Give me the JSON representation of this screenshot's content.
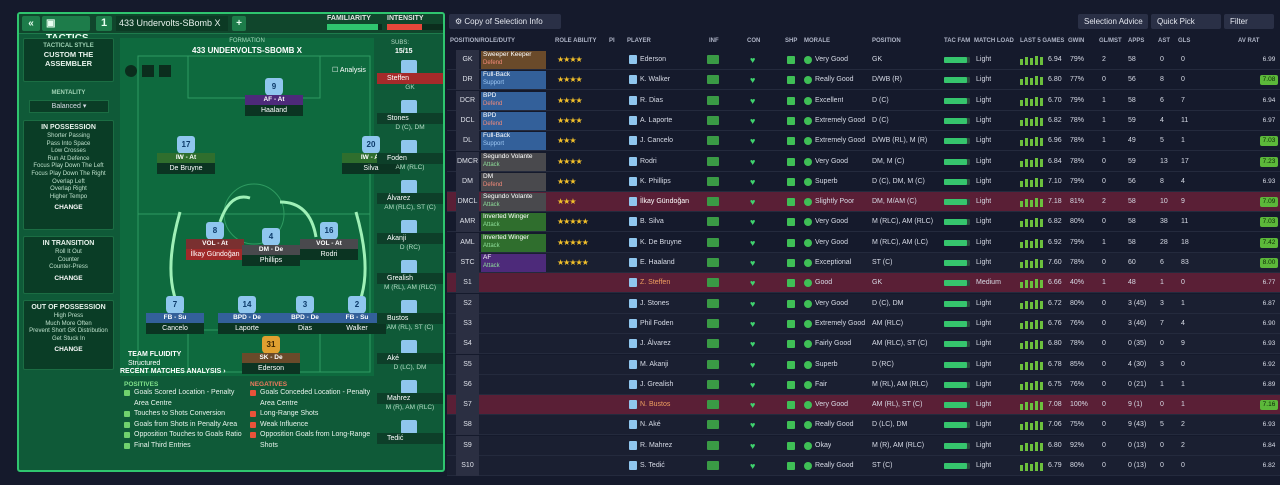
{
  "header": {
    "collapse_label": "«",
    "tactics_label": "TACTICS",
    "slot_number": "1",
    "tactic_name": "433 Undervolts-SBomb X",
    "add_label": "+",
    "familiarity_label": "FAMILIARITY",
    "familiarity_value": 0.92,
    "intensity_label": "INTENSITY",
    "intensity_value": 0.62
  },
  "sidebar": {
    "style_label": "TACTICAL STYLE",
    "style_value": "CUSTOM THE ASSEMBLER",
    "mentality_label": "MENTALITY",
    "mentality_value": "Balanced",
    "in_possession": {
      "title": "IN POSSESSION",
      "items": [
        "Shorter Passing",
        "Pass Into Space",
        "Low Crosses",
        "Run At Defence",
        "Focus Play Down The Left",
        "Focus Play Down The Right",
        "Overlap Left",
        "Overlap Right",
        "Higher Tempo"
      ],
      "change": "CHANGE"
    },
    "in_transition": {
      "title": "IN TRANSITION",
      "items": [
        "Roll It Out",
        "Counter",
        "Counter-Press"
      ],
      "change": "CHANGE"
    },
    "out_of_possession": {
      "title": "OUT OF POSSESSION",
      "items": [
        "High Press",
        "Much More Often",
        "Prevent Short GK Distribution",
        "Get Stuck In"
      ],
      "change": "CHANGE"
    }
  },
  "pitch": {
    "formation_label": "FORMATION",
    "formation_name": "433 UNDERVOLTS-SBOMB X",
    "analysis_label": "Analysis",
    "team_fluidity_label": "TEAM FLUIDITY",
    "team_fluidity_value": "Structured",
    "players": [
      {
        "num": "9",
        "role": "AF - At",
        "name": "Haaland",
        "color": "#4d2a7a"
      },
      {
        "num": "17",
        "role": "IW - At",
        "name": "De Bruyne",
        "color": "#2f6e2d"
      },
      {
        "num": "20",
        "role": "IW - At",
        "name": "Silva",
        "color": "#2f6e2d"
      },
      {
        "num": "8",
        "role": "VOL - At",
        "name": "İlkay Gündoğan",
        "color": "#7a3030"
      },
      {
        "num": "4",
        "role": "DM - De",
        "name": "Phillips",
        "color": "#49494d"
      },
      {
        "num": "16",
        "role": "VOL - At",
        "name": "Rodri",
        "color": "#49494d"
      },
      {
        "num": "7",
        "role": "FB - Su",
        "name": "Cancelo",
        "color": "#33609a"
      },
      {
        "num": "14",
        "role": "BPD - De",
        "name": "Laporte",
        "color": "#33609a"
      },
      {
        "num": "3",
        "role": "BPD - De",
        "name": "Dias",
        "color": "#33609a"
      },
      {
        "num": "2",
        "role": "FB - Su",
        "name": "Walker",
        "color": "#33609a"
      },
      {
        "num": "31",
        "role": "SK - De",
        "name": "Ederson",
        "color": "#6a4a2a"
      }
    ]
  },
  "subs": {
    "label": "SUBS:",
    "count": "15/15",
    "list": [
      {
        "name": "Steffen",
        "pos": "GK"
      },
      {
        "name": "Stones",
        "pos": "D (C), DM"
      },
      {
        "name": "Foden",
        "pos": "AM (RLC)"
      },
      {
        "name": "Álvarez",
        "pos": "AM (RLC), ST (C)"
      },
      {
        "name": "Akanji",
        "pos": "D (RC)"
      },
      {
        "name": "Grealish",
        "pos": "M (RL), AM (RLC)"
      },
      {
        "name": "Bustos",
        "pos": "AM (RL), ST (C)"
      },
      {
        "name": "Aké",
        "pos": "D (LC), DM"
      },
      {
        "name": "Mahrez",
        "pos": "M (R), AM (RLC)"
      },
      {
        "name": "Tedić",
        "pos": ""
      }
    ]
  },
  "recent_matches": {
    "title": "RECENT MATCHES ANALYSIS ›",
    "positives_label": "POSITIVES",
    "positives": [
      "Goals Scored Location - Penalty Area Centre",
      "Touches to Shots Conversion",
      "Goals from Shots in Penalty Area",
      "Opposition Touches to Goals Ratio",
      "Final Third Entries"
    ],
    "negatives_label": "NEGATIVES",
    "negatives": [
      "Goals Conceded Location - Penalty Area Centre",
      "Long-Range Shots",
      "Weak Influence",
      "Opposition Goals from Long-Range Shots"
    ]
  },
  "toolbar": {
    "copy_label": "Copy of Selection Info",
    "selection_advice": "Selection Advice",
    "quick_pick": "Quick Pick",
    "filter": "Filter"
  },
  "table": {
    "columns": [
      "POSITION/ROLE/DUTY",
      "ROLE ABILITY",
      "PI",
      "PLAYER",
      "INF",
      "CON",
      "SHP",
      "MORALE",
      "POSITION",
      "TAC FAM",
      "MATCH LOAD",
      "LAST 5 GAMES",
      "GWIN",
      "GL/MST",
      "APPS",
      "AST",
      "GLS",
      "AV RAT"
    ],
    "rows": [
      {
        "pos": "GK",
        "role": "Sweeper Keeper",
        "duty": "Defend",
        "stars": "★★★★",
        "player": "Ederson",
        "morale": "Very Good",
        "position": "GK",
        "load": "Light",
        "l5": "6.94",
        "gwin": "79%",
        "glmst": "2",
        "apps": "58",
        "ast": "0",
        "gls": "0",
        "avr": "6.99",
        "rc": "#6a4a2a"
      },
      {
        "pos": "DR",
        "role": "Full-Back",
        "duty": "Support",
        "stars": "★★★★",
        "player": "K. Walker",
        "morale": "Really Good",
        "position": "D/WB (R)",
        "load": "Light",
        "l5": "6.80",
        "gwin": "77%",
        "glmst": "0",
        "apps": "56",
        "ast": "8",
        "gls": "0",
        "avr": "7.08",
        "rc": "#33609a"
      },
      {
        "pos": "DCR",
        "role": "BPD",
        "duty": "Defend",
        "stars": "★★★★",
        "player": "R. Dias",
        "morale": "Excellent",
        "position": "D (C)",
        "load": "Light",
        "l5": "6.70",
        "gwin": "79%",
        "glmst": "1",
        "apps": "58",
        "ast": "6",
        "gls": "7",
        "avr": "6.94",
        "rc": "#33609a"
      },
      {
        "pos": "DCL",
        "role": "BPD",
        "duty": "Defend",
        "stars": "★★★★",
        "player": "A. Laporte",
        "morale": "Extremely Good",
        "position": "D (C)",
        "load": "Light",
        "l5": "6.82",
        "gwin": "78%",
        "glmst": "1",
        "apps": "59",
        "ast": "4",
        "gls": "11",
        "avr": "6.97",
        "rc": "#33609a"
      },
      {
        "pos": "DL",
        "role": "Full-Back",
        "duty": "Support",
        "stars": "★★★",
        "player": "J. Cancelo",
        "morale": "Extremely Good",
        "position": "D/WB (RL), M (R)",
        "load": "Light",
        "l5": "6.96",
        "gwin": "78%",
        "glmst": "1",
        "apps": "49",
        "ast": "5",
        "gls": "1",
        "avr": "7.03",
        "rc": "#33609a"
      },
      {
        "pos": "DMCR",
        "role": "Segundo Volante",
        "duty": "Attack",
        "stars": "★★★★",
        "player": "Rodri",
        "morale": "Very Good",
        "position": "DM, M (C)",
        "load": "Light",
        "l5": "6.84",
        "gwin": "78%",
        "glmst": "0",
        "apps": "59",
        "ast": "13",
        "gls": "17",
        "avr": "7.23",
        "rc": "#49494d"
      },
      {
        "pos": "DM",
        "role": "DM",
        "duty": "Defend",
        "stars": "★★★",
        "player": "K. Phillips",
        "morale": "Superb",
        "position": "D (C), DM, M (C)",
        "load": "Light",
        "l5": "7.10",
        "gwin": "79%",
        "glmst": "0",
        "apps": "56",
        "ast": "8",
        "gls": "4",
        "avr": "6.93",
        "rc": "#49494d"
      },
      {
        "pos": "DMCL",
        "role": "Segundo Volante",
        "duty": "Attack",
        "stars": "★★★",
        "player": "İlkay Gündoğan",
        "morale": "Slightly Poor",
        "position": "DM, M/AM (C)",
        "load": "Light",
        "l5": "7.18",
        "gwin": "81%",
        "glmst": "2",
        "apps": "58",
        "ast": "10",
        "gls": "9",
        "avr": "7.09",
        "rc": "#49494d",
        "sel": true
      },
      {
        "pos": "AMR",
        "role": "Inverted Winger",
        "duty": "Attack",
        "stars": "★★★★★",
        "player": "B. Silva",
        "morale": "Very Good",
        "position": "M (RLC), AM (RLC)",
        "load": "Light",
        "l5": "6.82",
        "gwin": "80%",
        "glmst": "0",
        "apps": "58",
        "ast": "38",
        "gls": "11",
        "avr": "7.03",
        "rc": "#2f6e2d"
      },
      {
        "pos": "AML",
        "role": "Inverted Winger",
        "duty": "Attack",
        "stars": "★★★★★",
        "player": "K. De Bruyne",
        "morale": "Very Good",
        "position": "M (RLC), AM (LC)",
        "load": "Light",
        "l5": "6.92",
        "gwin": "79%",
        "glmst": "1",
        "apps": "58",
        "ast": "28",
        "gls": "18",
        "avr": "7.42",
        "rc": "#2f6e2d"
      },
      {
        "pos": "STC",
        "role": "AF",
        "duty": "Attack",
        "stars": "★★★★★",
        "player": "E. Haaland",
        "morale": "Exceptional",
        "position": "ST (C)",
        "load": "Light",
        "l5": "7.60",
        "gwin": "78%",
        "glmst": "0",
        "apps": "60",
        "ast": "6",
        "gls": "83",
        "avr": "8.00",
        "rc": "#4d2a7a"
      },
      {
        "pos": "S1",
        "player": "Z. Steffen",
        "morale": "Good",
        "position": "GK",
        "load": "Medium",
        "l5": "6.66",
        "gwin": "40%",
        "glmst": "1",
        "apps": "48",
        "ast": "1",
        "gls": "0",
        "avr": "6.77",
        "sel": true
      },
      {
        "pos": "S2",
        "player": "J. Stones",
        "morale": "Very Good",
        "position": "D (C), DM",
        "load": "Light",
        "l5": "6.72",
        "gwin": "80%",
        "glmst": "0",
        "apps": "3 (45)",
        "ast": "3",
        "gls": "1",
        "avr": "6.87"
      },
      {
        "pos": "S3",
        "player": "Phil Foden",
        "morale": "Extremely Good",
        "position": "AM (RLC)",
        "load": "Light",
        "l5": "6.76",
        "gwin": "76%",
        "glmst": "0",
        "apps": "3 (46)",
        "ast": "7",
        "gls": "4",
        "avr": "6.90"
      },
      {
        "pos": "S4",
        "player": "J. Álvarez",
        "morale": "Fairly Good",
        "position": "AM (RLC), ST (C)",
        "load": "Light",
        "l5": "6.80",
        "gwin": "78%",
        "glmst": "0",
        "apps": "0 (35)",
        "ast": "0",
        "gls": "9",
        "avr": "6.93"
      },
      {
        "pos": "S5",
        "player": "M. Akanji",
        "morale": "Superb",
        "position": "D (RC)",
        "load": "Light",
        "l5": "6.78",
        "gwin": "85%",
        "glmst": "0",
        "apps": "4 (30)",
        "ast": "3",
        "gls": "0",
        "avr": "6.92"
      },
      {
        "pos": "S6",
        "player": "J. Grealish",
        "morale": "Fair",
        "position": "M (RL), AM (RLC)",
        "load": "Light",
        "l5": "6.75",
        "gwin": "76%",
        "glmst": "0",
        "apps": "0 (21)",
        "ast": "1",
        "gls": "1",
        "avr": "6.89"
      },
      {
        "pos": "S7",
        "player": "N. Bustos",
        "morale": "Very Good",
        "position": "AM (RL), ST (C)",
        "load": "Light",
        "l5": "7.08",
        "gwin": "100%",
        "glmst": "0",
        "apps": "9 (1)",
        "ast": "0",
        "gls": "1",
        "avr": "7.16",
        "sel": true
      },
      {
        "pos": "S8",
        "player": "N. Aké",
        "morale": "Really Good",
        "position": "D (LC), DM",
        "load": "Light",
        "l5": "7.06",
        "gwin": "75%",
        "glmst": "0",
        "apps": "9 (43)",
        "ast": "5",
        "gls": "2",
        "avr": "6.93"
      },
      {
        "pos": "S9",
        "player": "R. Mahrez",
        "morale": "Okay",
        "position": "M (R), AM (RLC)",
        "load": "Light",
        "l5": "6.80",
        "gwin": "92%",
        "glmst": "0",
        "apps": "0 (13)",
        "ast": "0",
        "gls": "2",
        "avr": "6.84"
      },
      {
        "pos": "S10",
        "player": "S. Tedić",
        "morale": "Really Good",
        "position": "ST (C)",
        "load": "Light",
        "l5": "6.79",
        "gwin": "80%",
        "glmst": "0",
        "apps": "0 (13)",
        "ast": "0",
        "gls": "0",
        "avr": "6.82"
      }
    ]
  }
}
